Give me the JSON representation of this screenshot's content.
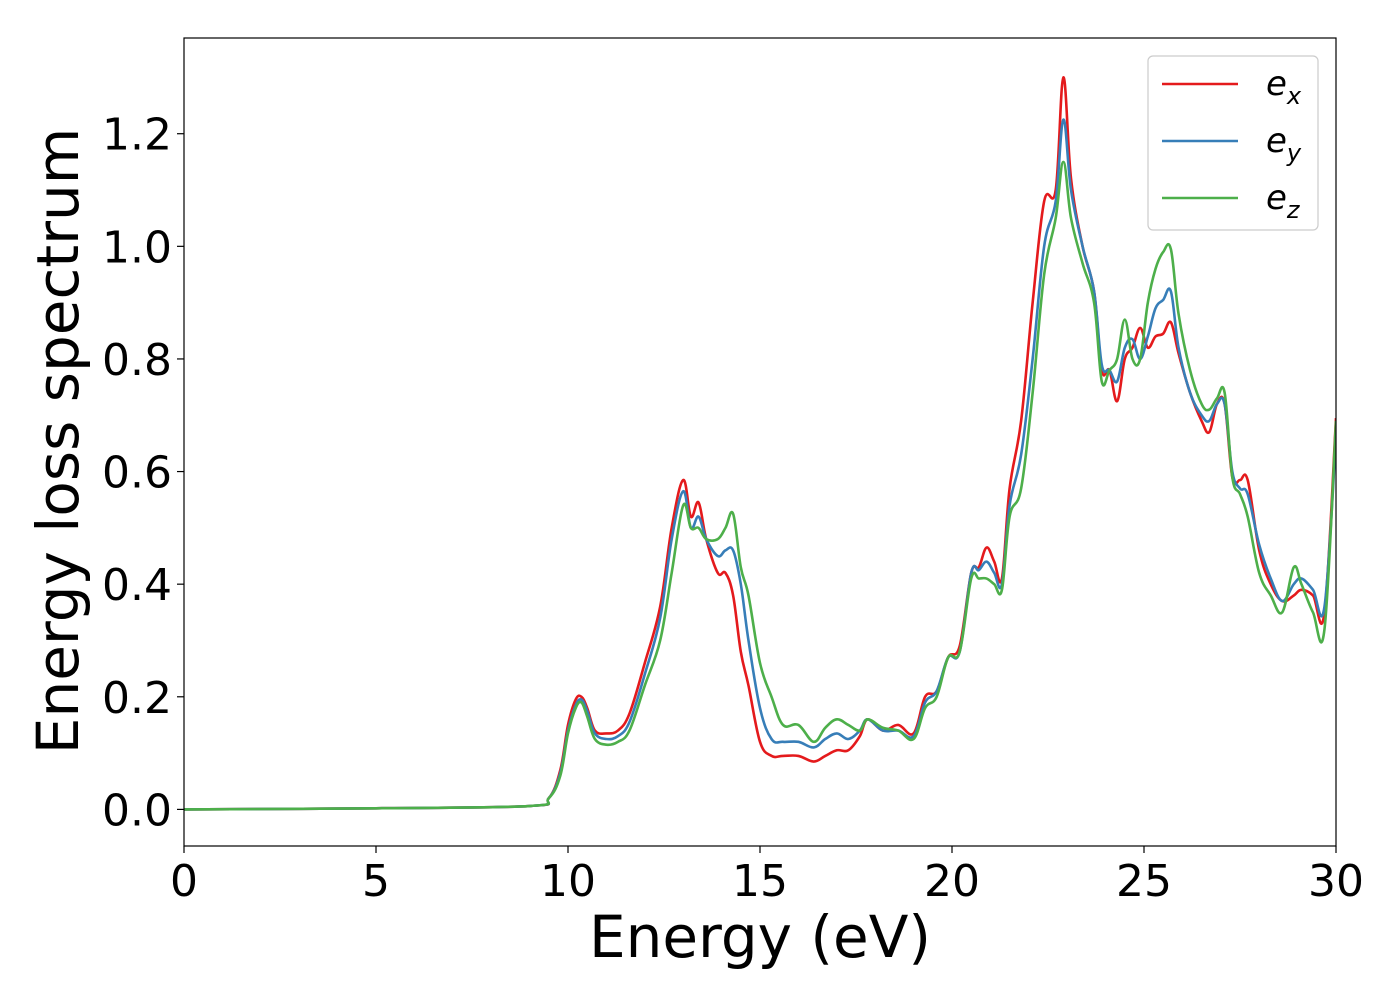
{
  "chart_data": {
    "type": "line",
    "title": "",
    "xlabel": "Energy (eV)",
    "ylabel": "Energy loss spectrum",
    "xlim": [
      0,
      30
    ],
    "ylim": [
      -0.065,
      1.37
    ],
    "xticks": [
      0,
      5,
      10,
      15,
      20,
      25,
      30
    ],
    "xtick_labels": [
      "0",
      "5",
      "10",
      "15",
      "20",
      "25",
      "30"
    ],
    "yticks": [
      0.0,
      0.2,
      0.4,
      0.6,
      0.8,
      1.0,
      1.2
    ],
    "ytick_labels": [
      "0.0",
      "0.2",
      "0.4",
      "0.6",
      "0.8",
      "1.0",
      "1.2"
    ],
    "grid": false,
    "legend_position": "top-right",
    "x": [
      0,
      5,
      9.0,
      9.5,
      9.8,
      10.0,
      10.2,
      10.35,
      10.5,
      10.7,
      11.0,
      11.3,
      11.6,
      12.0,
      12.4,
      12.7,
      13.0,
      13.2,
      13.4,
      13.6,
      13.9,
      14.1,
      14.3,
      14.5,
      14.7,
      15.0,
      15.3,
      15.6,
      16.0,
      16.4,
      16.7,
      17.0,
      17.3,
      17.6,
      17.8,
      18.2,
      18.6,
      19.0,
      19.3,
      19.6,
      19.9,
      20.2,
      20.5,
      20.7,
      20.9,
      21.1,
      21.3,
      21.5,
      21.8,
      22.1,
      22.4,
      22.7,
      22.9,
      23.1,
      23.4,
      23.7,
      23.9,
      24.1,
      24.3,
      24.5,
      24.7,
      24.9,
      25.1,
      25.3,
      25.5,
      25.7,
      25.9,
      26.2,
      26.5,
      26.7,
      26.9,
      27.1,
      27.3,
      27.5,
      27.7,
      28.0,
      28.3,
      28.6,
      28.9,
      29.1,
      29.4,
      29.7,
      30.0
    ],
    "series": [
      {
        "name": "e_x",
        "label_base": "e",
        "label_sub": "x",
        "color": "#e41a1c",
        "values": [
          0.0,
          0.002,
          0.006,
          0.02,
          0.07,
          0.15,
          0.195,
          0.2,
          0.18,
          0.14,
          0.135,
          0.14,
          0.17,
          0.26,
          0.36,
          0.5,
          0.585,
          0.52,
          0.545,
          0.48,
          0.42,
          0.42,
          0.38,
          0.28,
          0.22,
          0.12,
          0.095,
          0.095,
          0.095,
          0.085,
          0.095,
          0.105,
          0.105,
          0.13,
          0.16,
          0.14,
          0.15,
          0.135,
          0.2,
          0.21,
          0.27,
          0.29,
          0.42,
          0.43,
          0.465,
          0.44,
          0.41,
          0.57,
          0.69,
          0.9,
          1.08,
          1.1,
          1.3,
          1.12,
          1.0,
          0.92,
          0.78,
          0.78,
          0.725,
          0.8,
          0.82,
          0.855,
          0.82,
          0.84,
          0.845,
          0.865,
          0.81,
          0.74,
          0.69,
          0.67,
          0.72,
          0.72,
          0.59,
          0.585,
          0.585,
          0.46,
          0.4,
          0.37,
          0.38,
          0.39,
          0.38,
          0.35,
          0.695
        ]
      },
      {
        "name": "e_y",
        "label_base": "e",
        "label_sub": "y",
        "color": "#377eb8",
        "values": [
          0.0,
          0.002,
          0.006,
          0.02,
          0.065,
          0.14,
          0.185,
          0.195,
          0.175,
          0.135,
          0.125,
          0.13,
          0.155,
          0.24,
          0.34,
          0.48,
          0.565,
          0.5,
          0.52,
          0.48,
          0.45,
          0.46,
          0.46,
          0.4,
          0.3,
          0.18,
          0.125,
          0.12,
          0.12,
          0.11,
          0.125,
          0.135,
          0.125,
          0.14,
          0.16,
          0.14,
          0.14,
          0.13,
          0.19,
          0.21,
          0.27,
          0.28,
          0.42,
          0.425,
          0.44,
          0.42,
          0.4,
          0.54,
          0.63,
          0.8,
          1.0,
          1.08,
          1.225,
          1.1,
          1.0,
          0.92,
          0.79,
          0.78,
          0.76,
          0.82,
          0.835,
          0.8,
          0.84,
          0.89,
          0.905,
          0.92,
          0.82,
          0.74,
          0.7,
          0.69,
          0.72,
          0.72,
          0.6,
          0.57,
          0.56,
          0.47,
          0.41,
          0.37,
          0.4,
          0.41,
          0.39,
          0.36,
          0.66
        ]
      },
      {
        "name": "e_z",
        "label_base": "e",
        "label_sub": "z",
        "color": "#4daf4a",
        "values": [
          0.0,
          0.002,
          0.006,
          0.02,
          0.06,
          0.135,
          0.18,
          0.19,
          0.165,
          0.125,
          0.115,
          0.12,
          0.14,
          0.22,
          0.3,
          0.42,
          0.54,
          0.5,
          0.5,
          0.48,
          0.48,
          0.5,
          0.525,
          0.43,
          0.38,
          0.26,
          0.2,
          0.15,
          0.15,
          0.12,
          0.145,
          0.16,
          0.15,
          0.14,
          0.16,
          0.145,
          0.14,
          0.125,
          0.18,
          0.2,
          0.27,
          0.28,
          0.41,
          0.41,
          0.41,
          0.4,
          0.39,
          0.52,
          0.57,
          0.74,
          0.95,
          1.05,
          1.15,
          1.05,
          0.97,
          0.9,
          0.76,
          0.78,
          0.8,
          0.87,
          0.8,
          0.8,
          0.9,
          0.96,
          0.99,
          0.995,
          0.88,
          0.78,
          0.72,
          0.71,
          0.73,
          0.74,
          0.59,
          0.56,
          0.52,
          0.42,
          0.38,
          0.35,
          0.43,
          0.4,
          0.35,
          0.32,
          0.69
        ]
      }
    ]
  }
}
